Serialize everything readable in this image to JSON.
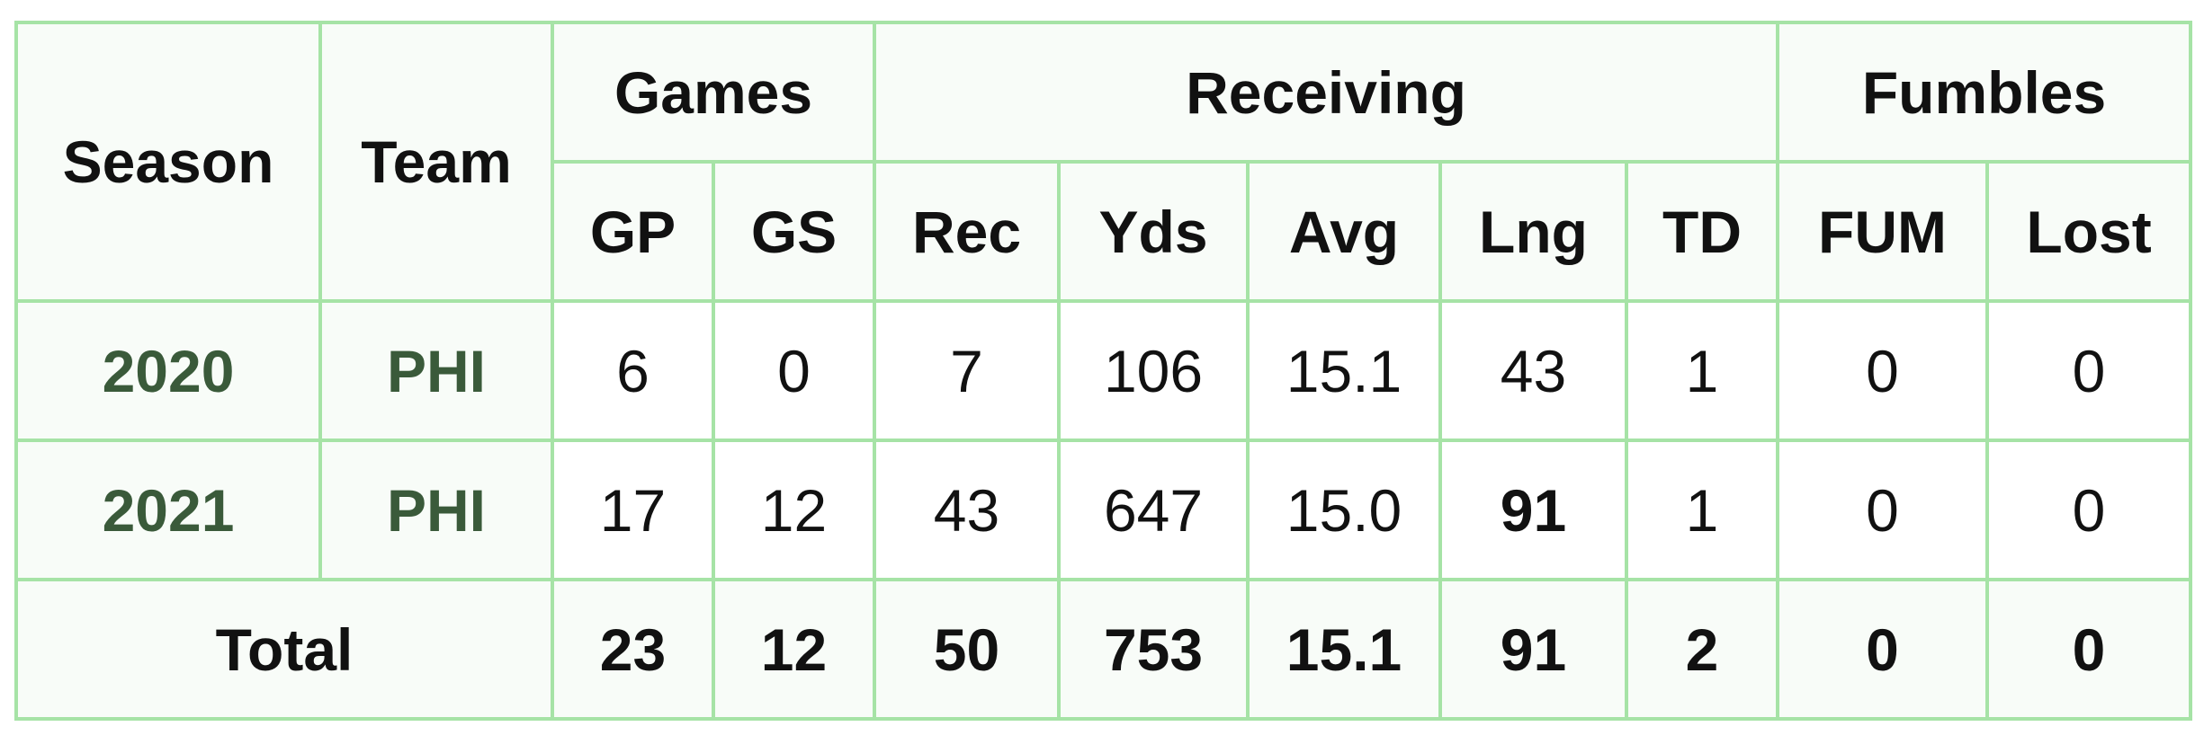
{
  "header": {
    "season": "Season",
    "team": "Team",
    "groups": [
      "Games",
      "Receiving",
      "Fumbles"
    ],
    "columns": [
      "GP",
      "GS",
      "Rec",
      "Yds",
      "Avg",
      "Lng",
      "TD",
      "FUM",
      "Lost"
    ]
  },
  "rows": [
    {
      "season": "2020",
      "team": "PHI",
      "stats": [
        "6",
        "0",
        "7",
        "106",
        "15.1",
        "43",
        "1",
        "0",
        "0"
      ]
    },
    {
      "season": "2021",
      "team": "PHI",
      "stats": [
        "17",
        "12",
        "43",
        "647",
        "15.0",
        "91",
        "1",
        "0",
        "0"
      ]
    }
  ],
  "total": {
    "label": "Total",
    "stats": [
      "23",
      "12",
      "50",
      "753",
      "15.1",
      "91",
      "2",
      "0",
      "0"
    ]
  }
}
